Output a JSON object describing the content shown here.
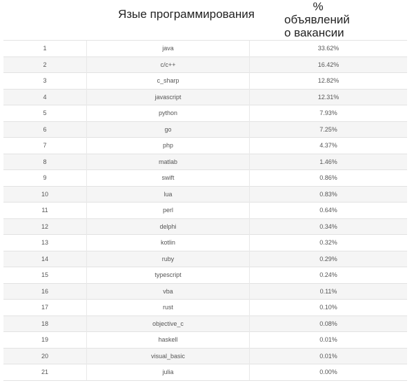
{
  "header": {
    "language_col": "Языe программирования",
    "percent_col_symbol": "%",
    "percent_col_line1": "объявлений",
    "percent_col_line2": "о вакансии"
  },
  "rows": [
    {
      "rank": "1",
      "language": "java",
      "percent": "33.62%"
    },
    {
      "rank": "2",
      "language": "c/c++",
      "percent": "16.42%"
    },
    {
      "rank": "3",
      "language": "c_sharp",
      "percent": "12.82%"
    },
    {
      "rank": "4",
      "language": "javascript",
      "percent": "12.31%"
    },
    {
      "rank": "5",
      "language": "python",
      "percent": "7.93%"
    },
    {
      "rank": "6",
      "language": "go",
      "percent": "7.25%"
    },
    {
      "rank": "7",
      "language": "php",
      "percent": "4.37%"
    },
    {
      "rank": "8",
      "language": "matlab",
      "percent": "1.46%"
    },
    {
      "rank": "9",
      "language": "swift",
      "percent": "0.86%"
    },
    {
      "rank": "10",
      "language": "lua",
      "percent": "0.83%"
    },
    {
      "rank": "11",
      "language": "perl",
      "percent": "0.64%"
    },
    {
      "rank": "12",
      "language": "delphi",
      "percent": "0.34%"
    },
    {
      "rank": "13",
      "language": "kotlin",
      "percent": "0.32%"
    },
    {
      "rank": "14",
      "language": "ruby",
      "percent": "0.29%"
    },
    {
      "rank": "15",
      "language": "typescript",
      "percent": "0.24%"
    },
    {
      "rank": "16",
      "language": "vba",
      "percent": "0.11%"
    },
    {
      "rank": "17",
      "language": "rust",
      "percent": "0.10%"
    },
    {
      "rank": "18",
      "language": "objective_c",
      "percent": "0.08%"
    },
    {
      "rank": "19",
      "language": "haskell",
      "percent": "0.01%"
    },
    {
      "rank": "20",
      "language": "visual_basic",
      "percent": "0.01%"
    },
    {
      "rank": "21",
      "language": "julia",
      "percent": "0.00%"
    }
  ]
}
